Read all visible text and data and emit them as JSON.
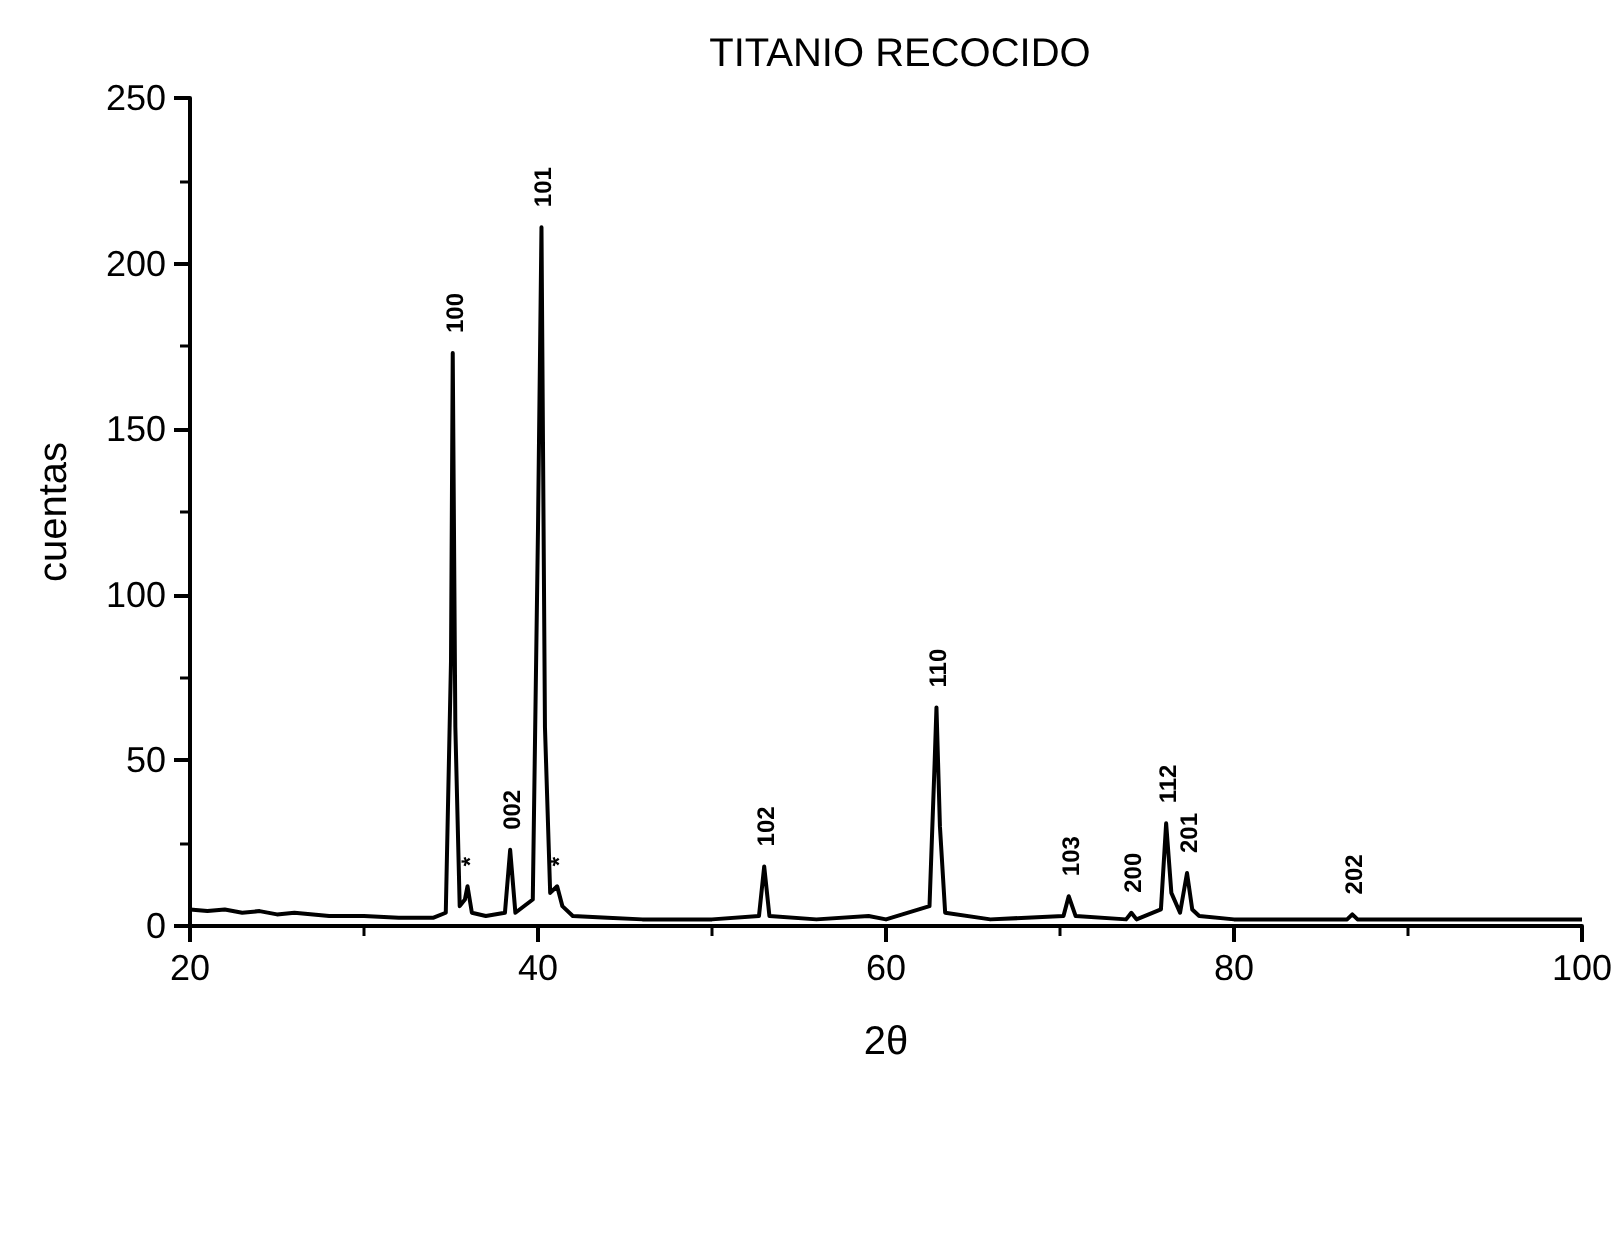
{
  "chart_data": {
    "type": "line",
    "title": "TITANIO RECOCIDO",
    "xlabel": "2θ",
    "ylabel": "cuentas",
    "xlim": [
      20,
      100
    ],
    "xticks": [
      20,
      40,
      60,
      80,
      100
    ],
    "ylim": [
      0,
      250
    ],
    "yticks": [
      0,
      50,
      100,
      150,
      200,
      250
    ],
    "grid": false,
    "marker": "none",
    "line_style": "solid",
    "series": [
      {
        "color": "#000000",
        "x": [
          20,
          21,
          22,
          23,
          24,
          25,
          26,
          28,
          30,
          32,
          34,
          34.7,
          35,
          35.1,
          35.25,
          35.5,
          35.8,
          35.95,
          36.2,
          37,
          38.1,
          38.4,
          38.7,
          39.7,
          40,
          40.2,
          40.4,
          40.7,
          41.1,
          41.4,
          42,
          44,
          46,
          50,
          52.7,
          53,
          53.3,
          56,
          59,
          60,
          62.5,
          62.8,
          62.9,
          63.1,
          63.4,
          66,
          70.2,
          70.5,
          70.9,
          73.8,
          74.1,
          74.4,
          75.8,
          76.1,
          76.4,
          76.9,
          77.3,
          77.6,
          78,
          80,
          84,
          86.5,
          86.8,
          87.1,
          90,
          95,
          100
        ],
        "values": [
          5,
          4.5,
          5,
          4,
          4.5,
          3.5,
          4,
          3,
          3,
          2.5,
          2.5,
          4,
          80,
          173,
          60,
          6,
          8,
          12,
          4,
          3,
          4,
          23,
          4,
          8,
          120,
          211,
          60,
          10,
          12,
          6,
          3,
          2.5,
          2,
          2,
          3,
          18,
          3,
          2,
          3,
          2,
          6,
          50,
          66,
          30,
          4,
          2,
          3,
          9,
          3,
          2,
          4,
          2,
          5,
          31,
          10,
          4,
          16,
          5,
          3,
          2,
          2,
          2,
          3.5,
          2,
          2,
          2,
          2
        ]
      }
    ],
    "annotations": [
      {
        "text": "100",
        "x": 35.1,
        "y": 173
      },
      {
        "text": "*",
        "x": 35.95,
        "y": 12
      },
      {
        "text": "002",
        "x": 38.4,
        "y": 23
      },
      {
        "text": "101",
        "x": 40.2,
        "y": 211
      },
      {
        "text": "*",
        "x": 41.1,
        "y": 12
      },
      {
        "text": "102",
        "x": 53,
        "y": 18
      },
      {
        "text": "110",
        "x": 62.9,
        "y": 66
      },
      {
        "text": "103",
        "x": 70.5,
        "y": 9
      },
      {
        "text": "200",
        "x": 74.1,
        "y": 4
      },
      {
        "text": "112",
        "x": 76.1,
        "y": 31
      },
      {
        "text": "201",
        "x": 77.3,
        "y": 16
      },
      {
        "text": "202",
        "x": 86.8,
        "y": 3.5
      }
    ]
  }
}
